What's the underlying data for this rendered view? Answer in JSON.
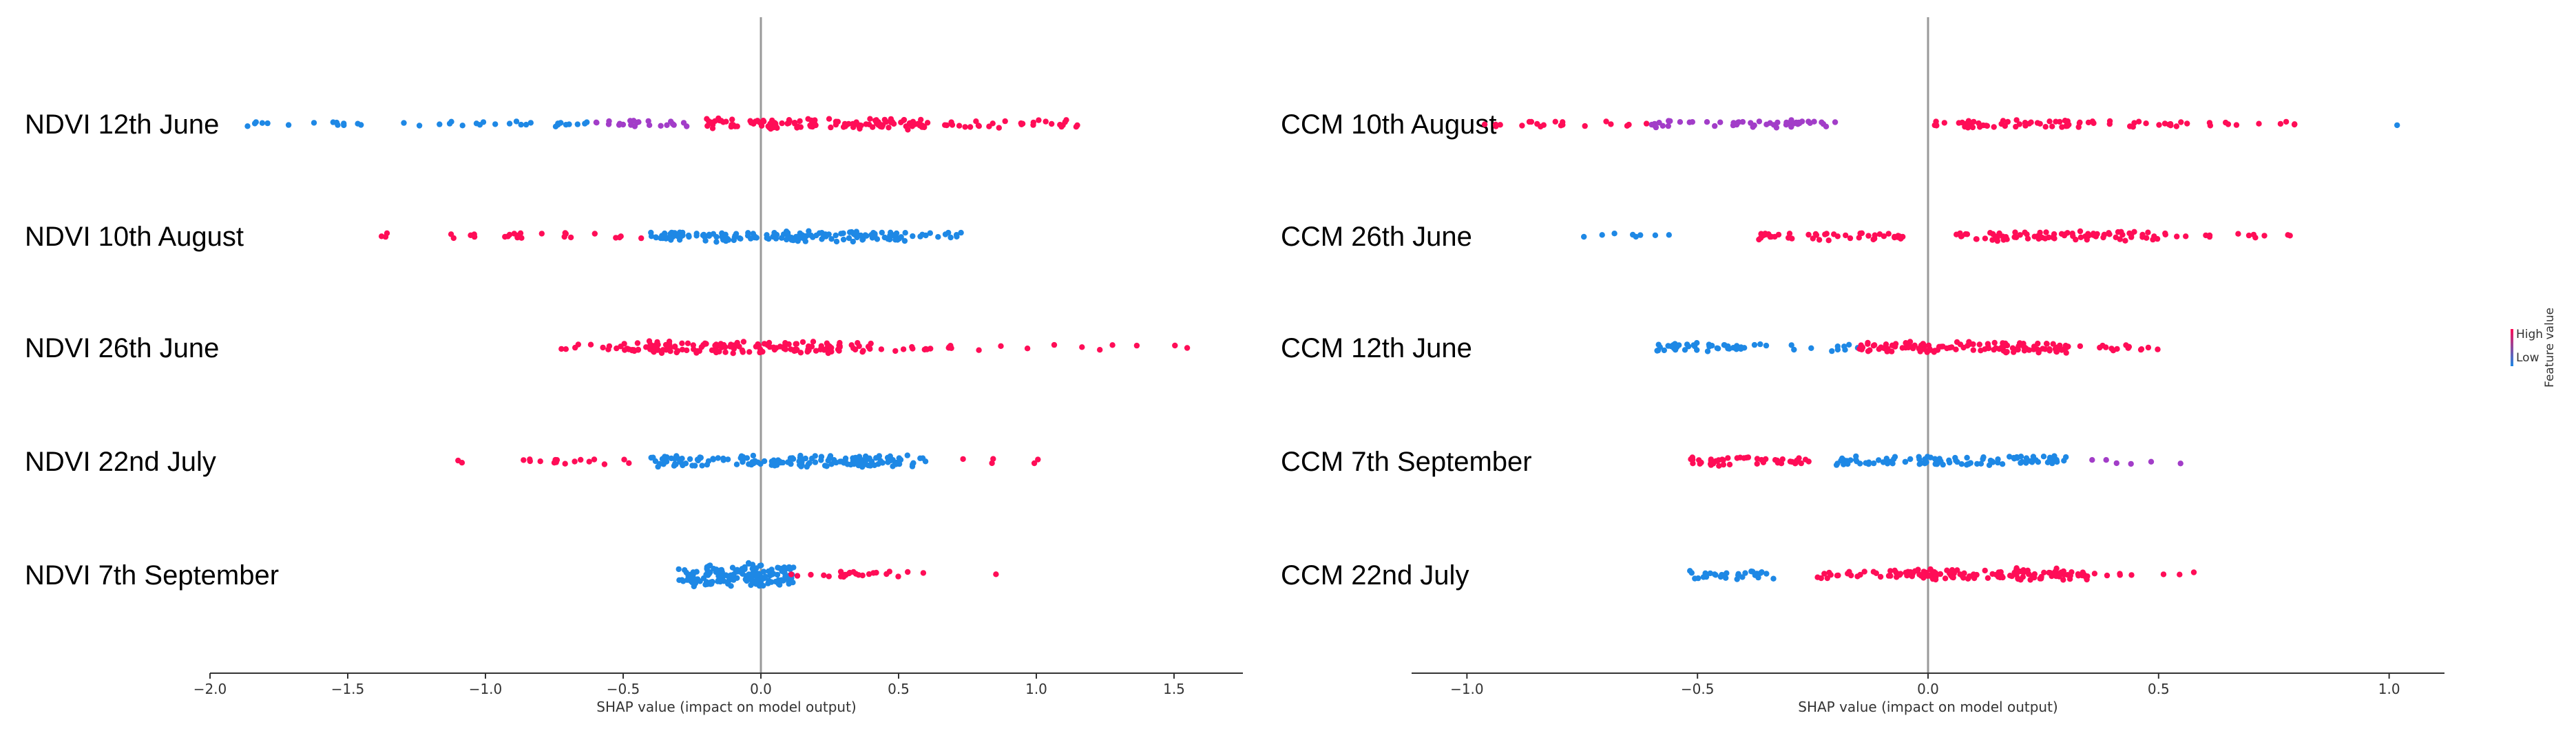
{
  "colors": {
    "high": "#ff0d57",
    "low": "#1e88e5",
    "mid": "#a23dc8",
    "axis": "#333333",
    "zero_line": "#999999"
  },
  "legend": {
    "high_label": "High",
    "low_label": "Low",
    "title": "Feature value"
  },
  "chart_data": [
    {
      "type": "scatter",
      "subtype": "shap-beeswarm",
      "xlabel": "SHAP value (impact on model output)",
      "xlim": [
        -2.0,
        1.75
      ],
      "xticks": [
        -2.0,
        -1.5,
        -1.0,
        -0.5,
        0.0,
        0.5,
        1.0,
        1.5
      ],
      "tick_labels": [
        "−2.0",
        "−1.5",
        "−1.0",
        "−0.5",
        "0.0",
        "0.5",
        "1.0",
        "1.5"
      ],
      "features": [
        {
          "name": "NDVI 12th June",
          "segments": [
            {
              "from": -1.95,
              "to": -1.45,
              "n": 14,
              "color": "low"
            },
            {
              "from": -1.3,
              "to": -0.6,
              "n": 24,
              "color": "low"
            },
            {
              "from": -0.6,
              "to": -0.2,
              "n": 22,
              "color": "mid"
            },
            {
              "from": -0.2,
              "to": 0.6,
              "n": 120,
              "color": "high"
            },
            {
              "from": 0.6,
              "to": 1.15,
              "n": 30,
              "color": "high"
            }
          ]
        },
        {
          "name": "NDVI 10th August",
          "segments": [
            {
              "from": -1.38,
              "to": -1.35,
              "n": 3,
              "color": "high"
            },
            {
              "from": -1.15,
              "to": -0.85,
              "n": 14,
              "color": "high"
            },
            {
              "from": -0.8,
              "to": -0.4,
              "n": 10,
              "color": "high"
            },
            {
              "from": -0.4,
              "to": 0.55,
              "n": 150,
              "color": "low"
            },
            {
              "from": 0.55,
              "to": 0.75,
              "n": 12,
              "color": "low"
            }
          ]
        },
        {
          "name": "NDVI 26th June",
          "segments": [
            {
              "from": -0.8,
              "to": -0.5,
              "n": 10,
              "color": "high"
            },
            {
              "from": -0.5,
              "to": 0.4,
              "n": 150,
              "color": "high"
            },
            {
              "from": 0.4,
              "to": 0.7,
              "n": 14,
              "color": "high"
            },
            {
              "from": 0.75,
              "to": 1.6,
              "n": 10,
              "color": "high"
            }
          ]
        },
        {
          "name": "NDVI 22nd July",
          "segments": [
            {
              "from": -1.1,
              "to": -1.07,
              "n": 2,
              "color": "high"
            },
            {
              "from": -0.87,
              "to": -0.45,
              "n": 16,
              "color": "high"
            },
            {
              "from": -0.4,
              "to": 0.6,
              "n": 160,
              "color": "low"
            },
            {
              "from": 0.7,
              "to": 1.1,
              "n": 5,
              "color": "high"
            }
          ]
        },
        {
          "name": "NDVI 7th September",
          "segments": [
            {
              "from": -0.3,
              "to": 0.12,
              "n": 170,
              "color": "low"
            },
            {
              "from": 0.1,
              "to": 0.6,
              "n": 24,
              "color": "high"
            },
            {
              "from": 0.85,
              "to": 0.87,
              "n": 1,
              "color": "high"
            }
          ]
        }
      ]
    },
    {
      "type": "scatter",
      "subtype": "shap-beeswarm",
      "xlabel": "SHAP value (impact on model output)",
      "xlim": [
        -1.12,
        1.12
      ],
      "xticks": [
        -1.0,
        -0.5,
        0.0,
        0.5,
        1.0
      ],
      "tick_labels": [
        "−1.0",
        "−0.5",
        "0.0",
        "0.5",
        "1.0"
      ],
      "features": [
        {
          "name": "CCM 10th August",
          "segments": [
            {
              "from": -1.0,
              "to": -0.6,
              "n": 20,
              "color": "high"
            },
            {
              "from": -0.6,
              "to": -0.2,
              "n": 50,
              "color": "mid"
            },
            {
              "from": 0.0,
              "to": 0.5,
              "n": 60,
              "color": "high"
            },
            {
              "from": 0.5,
              "to": 0.82,
              "n": 18,
              "color": "high"
            },
            {
              "from": 1.0,
              "to": 1.02,
              "n": 1,
              "color": "low"
            }
          ]
        },
        {
          "name": "CCM 26th June",
          "segments": [
            {
              "from": -0.85,
              "to": -0.55,
              "n": 8,
              "color": "low"
            },
            {
              "from": -0.4,
              "to": -0.05,
              "n": 45,
              "color": "high"
            },
            {
              "from": 0.05,
              "to": 0.5,
              "n": 80,
              "color": "high"
            },
            {
              "from": 0.5,
              "to": 0.8,
              "n": 14,
              "color": "high"
            }
          ]
        },
        {
          "name": "CCM 12th June",
          "segments": [
            {
              "from": -0.6,
              "to": -0.35,
              "n": 40,
              "color": "low"
            },
            {
              "from": -0.3,
              "to": -0.15,
              "n": 10,
              "color": "low"
            },
            {
              "from": -0.15,
              "to": 0.3,
              "n": 120,
              "color": "high"
            },
            {
              "from": 0.3,
              "to": 0.55,
              "n": 16,
              "color": "high"
            }
          ]
        },
        {
          "name": "CCM 7th September",
          "segments": [
            {
              "from": -0.52,
              "to": -0.25,
              "n": 45,
              "color": "high"
            },
            {
              "from": -0.2,
              "to": 0.3,
              "n": 100,
              "color": "low"
            },
            {
              "from": 0.35,
              "to": 0.55,
              "n": 6,
              "color": "mid"
            }
          ]
        },
        {
          "name": "CCM 22nd July",
          "segments": [
            {
              "from": -0.52,
              "to": -0.33,
              "n": 30,
              "color": "low"
            },
            {
              "from": -0.25,
              "to": -0.05,
              "n": 25,
              "color": "high"
            },
            {
              "from": -0.05,
              "to": 0.35,
              "n": 120,
              "color": "high"
            },
            {
              "from": 0.35,
              "to": 0.58,
              "n": 8,
              "color": "high"
            }
          ]
        }
      ]
    }
  ]
}
